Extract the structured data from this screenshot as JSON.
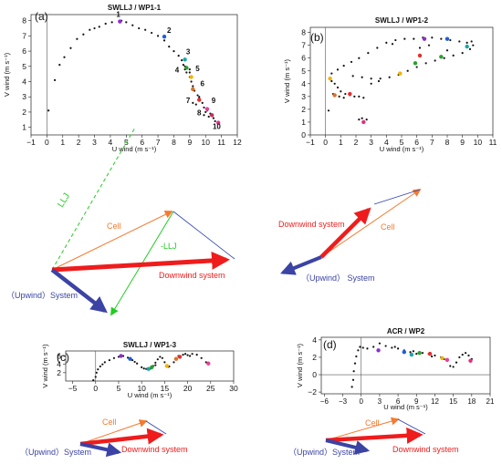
{
  "chart_data": [
    {
      "type": "scatter",
      "panel": "(a)",
      "title": "SWLLJ / WP1-1",
      "xlabel": "U wind (m s⁻¹)",
      "ylabel": "V wind (m s⁻¹)",
      "xlim": [
        -1,
        12
      ],
      "ylim": [
        0.5,
        8.4
      ],
      "xticks": [
        -1,
        0,
        1,
        2,
        3,
        4,
        5,
        6,
        7,
        8,
        9,
        10,
        11,
        12
      ],
      "yticks": [
        1,
        2,
        3,
        4,
        5,
        6,
        7,
        8
      ],
      "points": [
        [
          0.1,
          2.1
        ],
        [
          0.5,
          4.1
        ],
        [
          0.8,
          5.1
        ],
        [
          1.1,
          5.6
        ],
        [
          1.5,
          6.2
        ],
        [
          1.9,
          6.8
        ],
        [
          2.3,
          7.1
        ],
        [
          2.7,
          7.4
        ],
        [
          3.0,
          7.5
        ],
        [
          3.3,
          7.6
        ],
        [
          3.7,
          7.8
        ],
        [
          4.1,
          7.9
        ],
        [
          4.7,
          8.0
        ],
        [
          5.0,
          7.9
        ],
        [
          5.4,
          7.7
        ],
        [
          5.8,
          7.5
        ],
        [
          6.2,
          7.4
        ],
        [
          6.6,
          7.2
        ],
        [
          7.0,
          7.0
        ],
        [
          7.4,
          6.7
        ],
        [
          7.7,
          6.3
        ],
        [
          8.0,
          6.0
        ],
        [
          8.3,
          5.7
        ],
        [
          8.5,
          5.4
        ],
        [
          8.6,
          5.1
        ],
        [
          8.7,
          4.8
        ],
        [
          8.8,
          4.6
        ],
        [
          9.0,
          4.3
        ],
        [
          9.1,
          4.0
        ],
        [
          9.2,
          3.7
        ],
        [
          9.3,
          3.4
        ],
        [
          9.5,
          3.1
        ],
        [
          9.6,
          2.9
        ],
        [
          9.8,
          2.6
        ],
        [
          9.9,
          2.3
        ],
        [
          10.1,
          2.1
        ],
        [
          10.3,
          1.9
        ],
        [
          10.5,
          1.6
        ],
        [
          10.6,
          1.4
        ],
        [
          10.8,
          1.3
        ],
        [
          8.7,
          5.0
        ],
        [
          8.8,
          4.9
        ],
        [
          9.0,
          4.6
        ],
        [
          9.0,
          4.8
        ],
        [
          9.6,
          3.0
        ],
        [
          9.4,
          2.5
        ],
        [
          9.2,
          2.6
        ],
        [
          10.0,
          2.0
        ],
        [
          9.9,
          1.8
        ],
        [
          10.2,
          1.7
        ]
      ],
      "highlights": [
        {
          "x": 4.6,
          "y": 7.95,
          "color": "#8b2fc9"
        },
        {
          "x": 7.4,
          "y": 6.95,
          "color": "#1f5fd6"
        },
        {
          "x": 8.7,
          "y": 5.45,
          "color": "#1aa7a7"
        },
        {
          "x": 8.8,
          "y": 4.9,
          "color": "#2d9e2d"
        },
        {
          "x": 9.1,
          "y": 4.3,
          "color": "#f0b400"
        },
        {
          "x": 9.2,
          "y": 3.5,
          "color": "#e07020"
        },
        {
          "x": 9.6,
          "y": 2.8,
          "color": "#e03030"
        },
        {
          "x": 10.1,
          "y": 2.2,
          "color": "#e8409a"
        },
        {
          "x": 10.4,
          "y": 1.8,
          "color": "#c03060"
        },
        {
          "x": 10.8,
          "y": 1.3,
          "color": "#e0308a"
        }
      ],
      "labels": [
        {
          "text": "1",
          "x": 4.5,
          "y": 8.25
        },
        {
          "text": "2",
          "x": 7.7,
          "y": 7.2
        },
        {
          "text": "3",
          "x": 8.9,
          "y": 5.8
        },
        {
          "text": "4",
          "x": 8.2,
          "y": 4.6
        },
        {
          "text": "5",
          "x": 9.5,
          "y": 4.7
        },
        {
          "text": "6",
          "x": 9.8,
          "y": 3.7
        },
        {
          "text": "7",
          "x": 8.9,
          "y": 2.6
        },
        {
          "text": "8",
          "x": 9.6,
          "y": 1.8
        },
        {
          "text": "9",
          "x": 10.5,
          "y": 2.6
        },
        {
          "text": "10",
          "x": 10.7,
          "y": 0.9
        }
      ]
    },
    {
      "type": "scatter",
      "panel": "(b)",
      "title": "SWLLJ / WP1-2",
      "xlabel": "U wind (m s⁻¹)",
      "ylabel": "V wind (m s⁻¹)",
      "xlim": [
        -1,
        11
      ],
      "ylim": [
        0,
        8.4
      ],
      "xticks": [
        -1,
        0,
        1,
        2,
        3,
        4,
        5,
        6,
        7,
        8,
        9,
        10,
        11
      ],
      "yticks": [
        0,
        1,
        2,
        3,
        4,
        5,
        6,
        7,
        8
      ],
      "points": [
        [
          0.2,
          1.9
        ],
        [
          0.3,
          4.4
        ],
        [
          0.4,
          4.2
        ],
        [
          0.6,
          4.0
        ],
        [
          0.8,
          3.7
        ],
        [
          1.0,
          3.4
        ],
        [
          1.3,
          3.2
        ],
        [
          1.6,
          3.1
        ],
        [
          1.9,
          3.0
        ],
        [
          2.2,
          3.0
        ],
        [
          2.5,
          2.9
        ],
        [
          0.5,
          3.2
        ],
        [
          0.9,
          3.0
        ],
        [
          1.2,
          2.9
        ],
        [
          0.4,
          4.8
        ],
        [
          0.8,
          5.1
        ],
        [
          1.2,
          5.4
        ],
        [
          1.7,
          5.7
        ],
        [
          2.2,
          6.0
        ],
        [
          2.8,
          6.4
        ],
        [
          3.4,
          6.8
        ],
        [
          4.0,
          7.2
        ],
        [
          4.6,
          7.4
        ],
        [
          5.2,
          7.5
        ],
        [
          5.8,
          7.5
        ],
        [
          6.4,
          7.6
        ],
        [
          7.0,
          7.6
        ],
        [
          7.6,
          7.5
        ],
        [
          8.2,
          7.4
        ],
        [
          8.8,
          7.3
        ],
        [
          9.3,
          7.2
        ],
        [
          9.6,
          7.3
        ],
        [
          9.7,
          7.0
        ],
        [
          9.5,
          6.7
        ],
        [
          9.0,
          6.4
        ],
        [
          8.4,
          6.2
        ],
        [
          7.8,
          6.0
        ],
        [
          7.2,
          5.8
        ],
        [
          6.6,
          5.6
        ],
        [
          6.0,
          5.3
        ],
        [
          5.4,
          5.0
        ],
        [
          4.8,
          4.7
        ],
        [
          4.2,
          4.5
        ],
        [
          3.6,
          4.4
        ],
        [
          3.0,
          4.4
        ],
        [
          2.4,
          4.5
        ],
        [
          1.8,
          4.6
        ],
        [
          2.4,
          1.3
        ],
        [
          2.7,
          1.2
        ],
        [
          2.2,
          1.2
        ],
        [
          3.0,
          4.0
        ],
        [
          3.5,
          4.2
        ],
        [
          6.2,
          6.8
        ],
        [
          6.8,
          7.0
        ],
        [
          8.0,
          6.6
        ],
        [
          4.4,
          7.1
        ]
      ],
      "highlights": [
        {
          "x": 2.5,
          "y": 1.0,
          "color": "#e03080"
        },
        {
          "x": 4.9,
          "y": 4.8,
          "color": "#f0b400"
        },
        {
          "x": 5.9,
          "y": 5.6,
          "color": "#2d9e2d"
        },
        {
          "x": 6.2,
          "y": 6.2,
          "color": "#e03030"
        },
        {
          "x": 6.5,
          "y": 7.5,
          "color": "#8b2fc9"
        },
        {
          "x": 8.0,
          "y": 7.5,
          "color": "#1f5fd6"
        },
        {
          "x": 9.3,
          "y": 6.9,
          "color": "#1aa7a7"
        },
        {
          "x": 7.6,
          "y": 6.1,
          "color": "#2d9e2d"
        },
        {
          "x": 0.6,
          "y": 3.1,
          "color": "#e07020"
        },
        {
          "x": 1.6,
          "y": 3.2,
          "color": "#e03030"
        },
        {
          "x": 0.3,
          "y": 4.4,
          "color": "#f0b400"
        }
      ]
    },
    {
      "type": "scatter",
      "panel": "(c)",
      "title": "SWLLJ / WP1-3",
      "xlabel": "U wind (m s⁻¹)",
      "ylabel": "V wind (m s⁻¹)",
      "xlim": [
        -6.5,
        30
      ],
      "ylim": [
        0,
        7.2
      ],
      "xticks": [
        -5,
        0,
        5,
        10,
        15,
        20,
        25,
        30
      ],
      "yticks": [
        2,
        4,
        6
      ],
      "points": [
        [
          -0.5,
          0.2
        ],
        [
          0,
          1
        ],
        [
          0.2,
          2
        ],
        [
          0.5,
          2.8
        ],
        [
          1,
          3.5
        ],
        [
          1.5,
          4
        ],
        [
          2,
          4.5
        ],
        [
          3,
          5
        ],
        [
          4,
          5.5
        ],
        [
          5,
          5.8
        ],
        [
          6,
          6
        ],
        [
          7,
          5.6
        ],
        [
          8,
          5
        ],
        [
          9,
          4.2
        ],
        [
          10,
          3.3
        ],
        [
          11,
          2.9
        ],
        [
          12,
          3
        ],
        [
          12.5,
          3.6
        ],
        [
          13,
          4.4
        ],
        [
          13.5,
          5.2
        ],
        [
          14,
          5.8
        ],
        [
          14.5,
          5.5
        ],
        [
          15,
          4.5
        ],
        [
          15.5,
          3.7
        ],
        [
          16,
          3.5
        ],
        [
          17,
          4.5
        ],
        [
          17.5,
          5.3
        ],
        [
          18,
          6
        ],
        [
          19,
          6.3
        ],
        [
          20,
          6.2
        ],
        [
          20.5,
          6
        ],
        [
          21,
          6.5
        ],
        [
          22,
          6.3
        ],
        [
          23,
          5.5
        ],
        [
          24,
          4.5
        ],
        [
          24.5,
          4
        ],
        [
          8.5,
          4.6
        ],
        [
          10.5,
          3
        ],
        [
          11.5,
          2.8
        ],
        [
          13,
          3.8
        ],
        [
          15.8,
          3.4
        ],
        [
          19.5,
          6.5
        ]
      ],
      "highlights": [
        {
          "x": 5.5,
          "y": 6.0,
          "color": "#8b2fc9"
        },
        {
          "x": 7.5,
          "y": 5.3,
          "color": "#1f5fd6"
        },
        {
          "x": 11.5,
          "y": 2.9,
          "color": "#1aa7a7"
        },
        {
          "x": 12.2,
          "y": 3.3,
          "color": "#2d9e2d"
        },
        {
          "x": 15.5,
          "y": 3.6,
          "color": "#f0b400"
        },
        {
          "x": 17.5,
          "y": 5.3,
          "color": "#e07020"
        },
        {
          "x": 18.3,
          "y": 5.8,
          "color": "#e03030"
        },
        {
          "x": 24.5,
          "y": 4.2,
          "color": "#e8409a"
        }
      ]
    },
    {
      "type": "scatter",
      "panel": "(d)",
      "title": "ACR / WP2",
      "xlabel": "U wind (m s⁻¹)",
      "ylabel": "V wind (m s⁻¹)",
      "xlim": [
        -6.5,
        21
      ],
      "ylim": [
        -2.2,
        4.3
      ],
      "xticks": [
        -6,
        -3,
        0,
        3,
        6,
        9,
        12,
        15,
        18,
        21
      ],
      "yticks": [
        -2,
        0,
        2,
        4
      ],
      "points": [
        [
          -1.5,
          -1.4
        ],
        [
          -1.3,
          -0.6
        ],
        [
          -1.2,
          0.4
        ],
        [
          -1.0,
          1.3
        ],
        [
          -0.8,
          2.1
        ],
        [
          -0.5,
          2.8
        ],
        [
          -0.2,
          3.2
        ],
        [
          0.3,
          3.1
        ],
        [
          1.0,
          3.0
        ],
        [
          2,
          3.2
        ],
        [
          3,
          3.6
        ],
        [
          4,
          3.3
        ],
        [
          5,
          3.1
        ],
        [
          6,
          3.0
        ],
        [
          7,
          2.8
        ],
        [
          8,
          2.6
        ],
        [
          9,
          2.4
        ],
        [
          10,
          2.5
        ],
        [
          11,
          2.4
        ],
        [
          12,
          2.2
        ],
        [
          13,
          2.0
        ],
        [
          14,
          1.6
        ],
        [
          14.5,
          1.0
        ],
        [
          15,
          0.9
        ],
        [
          15.5,
          1.4
        ],
        [
          16,
          2.0
        ],
        [
          16.5,
          2.3
        ],
        [
          17,
          2.5
        ],
        [
          17.5,
          2.2
        ],
        [
          18,
          1.8
        ],
        [
          8.5,
          2.7
        ],
        [
          11.5,
          2.1
        ],
        [
          13.5,
          1.8
        ],
        [
          5.5,
          3.2
        ]
      ],
      "highlights": [
        {
          "x": 2.8,
          "y": 2.8,
          "color": "#8b2fc9"
        },
        {
          "x": 7.0,
          "y": 2.6,
          "color": "#1f5fd6"
        },
        {
          "x": 8.2,
          "y": 2.3,
          "color": "#1aa7a7"
        },
        {
          "x": 9.5,
          "y": 2.5,
          "color": "#2d9e2d"
        },
        {
          "x": 13.2,
          "y": 1.9,
          "color": "#f0b400"
        },
        {
          "x": 11.2,
          "y": 2.4,
          "color": "#e03030"
        },
        {
          "x": 14.0,
          "y": 1.7,
          "color": "#e8409a"
        },
        {
          "x": 17.8,
          "y": 1.6,
          "color": "#e03080"
        }
      ]
    }
  ],
  "diagrams": {
    "main": {
      "lljLabel": "LLJ",
      "negLljLabel": "-LLJ",
      "cellLabel": "Cell",
      "downwindLabel": "Downwind system",
      "upwindLabel": "（Upwind）System"
    },
    "right": {
      "cellLabel": "Cell",
      "downwindLabel": "Downwind system",
      "upwindLabel": "（Upwind） System"
    },
    "c": {
      "cellLabel": "Cell",
      "downwindLabel": "Downwind system",
      "upwindLabel": "（Upwind）System"
    },
    "d": {
      "cellLabel": "Cell",
      "downwindLabel": "Downwind system",
      "upwindLabel": "（Upwind）System"
    }
  },
  "colors": {
    "red": "#ee1c1c",
    "blue": "#3b43a4",
    "orange": "#f47a30",
    "green": "#22cc22",
    "thinBlue": "#3040b0"
  }
}
